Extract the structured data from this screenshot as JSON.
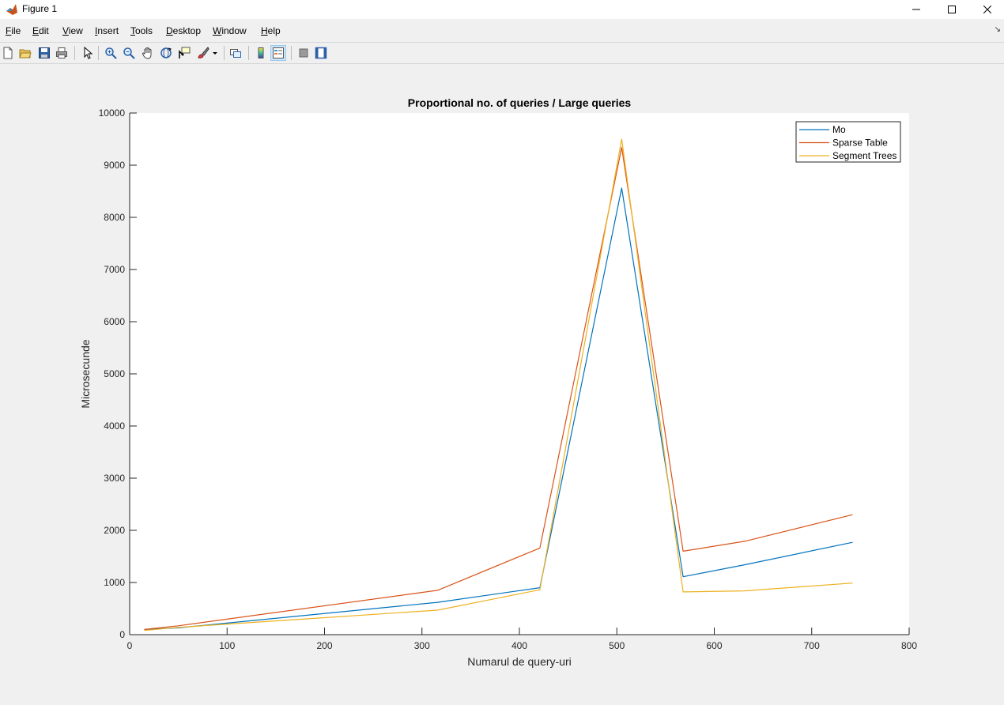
{
  "window": {
    "title": "Figure 1",
    "controls": [
      "minimize-icon",
      "maximize-icon",
      "close-icon"
    ]
  },
  "menu": [
    "File",
    "Edit",
    "View",
    "Insert",
    "Tools",
    "Desktop",
    "Window",
    "Help"
  ],
  "toolbar": {
    "icons": [
      "new-figure-icon",
      "open-file-icon",
      "save-icon",
      "print-icon",
      "pointer-icon",
      "zoom-in-icon",
      "zoom-out-icon",
      "pan-icon",
      "rotate-3d-icon",
      "data-cursor-icon",
      "brush-icon",
      "link-plot-icon",
      "colorbar-icon",
      "legend-icon",
      "hide-plot-tools-icon",
      "show-plot-tools-icon"
    ],
    "active": "legend-icon"
  },
  "chart_data": {
    "type": "line",
    "title": "Proportional no. of queries / Large queries",
    "xlabel": "Numarul de query-uri",
    "ylabel": "Microsecunde",
    "xlim": [
      0,
      800
    ],
    "ylim": [
      0,
      10000
    ],
    "xticks": [
      "0",
      "100",
      "200",
      "300",
      "400",
      "500",
      "600",
      "700",
      "800"
    ],
    "yticks": [
      "0",
      "1000",
      "2000",
      "3000",
      "4000",
      "5000",
      "6000",
      "7000",
      "8000",
      "9000",
      "10000"
    ],
    "grid": false,
    "legend_position": "top-right",
    "x": [
      15,
      50,
      316,
      421,
      505,
      568,
      631,
      742
    ],
    "series": [
      {
        "name": "Mo",
        "color": "#0072BD",
        "values": [
          100,
          130,
          620,
          900,
          8560,
          1110,
          1340,
          1770
        ]
      },
      {
        "name": "Sparse Table",
        "color": "#D95319",
        "values": [
          100,
          170,
          850,
          1660,
          9340,
          1600,
          1790,
          2300
        ]
      },
      {
        "name": "Segment Trees",
        "color": "#EDB120",
        "values": [
          80,
          140,
          470,
          860,
          9500,
          820,
          840,
          990
        ]
      }
    ]
  }
}
